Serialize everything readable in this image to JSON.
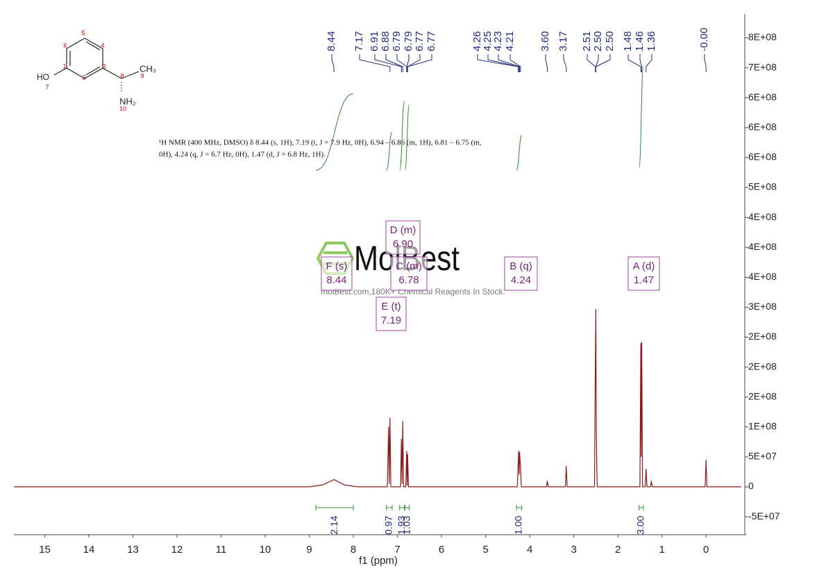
{
  "chart_data": {
    "type": "line",
    "xlabel": "f1 (ppm)",
    "xlim": [
      15.7,
      -0.8
    ],
    "xticks": [
      15,
      14,
      13,
      12,
      11,
      10,
      9,
      8,
      7,
      6,
      5,
      4,
      3,
      2,
      1,
      0
    ],
    "ylim": [
      -80000000,
      790000000
    ],
    "yticks": [
      {
        "value": -50000000,
        "label": "-5E+07"
      },
      0,
      {
        "value": 50000000,
        "label": "5E+07"
      },
      {
        "value": 100000000,
        "label": "1E+08"
      },
      {
        "value": 150000000,
        "label": "2E+08"
      },
      {
        "value": 200000000,
        "label": "2E+08"
      },
      {
        "value": 250000000,
        "label": "2E+08"
      },
      {
        "value": 300000000,
        "label": "3E+08"
      },
      {
        "value": 350000000,
        "label": "4E+08"
      },
      {
        "value": 400000000,
        "label": "4E+08"
      },
      {
        "value": 450000000,
        "label": "4E+08"
      },
      {
        "value": 500000000,
        "label": "5E+08"
      },
      {
        "value": 550000000,
        "label": "6E+08"
      },
      {
        "value": 600000000,
        "label": "6E+08"
      },
      {
        "value": 650000000,
        "label": "6E+08"
      },
      {
        "value": 700000000,
        "label": "7E+08"
      },
      {
        "value": 750000000,
        "label": "8E+08"
      }
    ],
    "color": "#8b1a1a",
    "x": [
      15.7,
      9.0,
      8.7,
      8.44,
      8.2,
      7.9,
      7.23,
      7.2,
      7.185,
      7.17,
      7.15,
      6.93,
      6.91,
      6.895,
      6.88,
      6.86,
      6.81,
      6.79,
      6.78,
      6.77,
      6.75,
      4.28,
      4.26,
      4.25,
      4.24,
      4.23,
      4.21,
      4.19,
      3.62,
      3.6,
      3.58,
      3.19,
      3.17,
      3.15,
      2.53,
      2.51,
      2.5,
      2.49,
      2.47,
      1.5,
      1.48,
      1.47,
      1.46,
      1.44,
      1.38,
      1.36,
      1.34,
      1.26,
      1.24,
      1.22,
      0.02,
      0.0,
      -0.02,
      -0.8
    ],
    "values": [
      0,
      0,
      3000000,
      12000000,
      3000000,
      0,
      0,
      100000000,
      5000000,
      115000000,
      0,
      0,
      80000000,
      5000000,
      110000000,
      0,
      0,
      60000000,
      2000000,
      55000000,
      0,
      0,
      40000000,
      60000000,
      20000000,
      58000000,
      35000000,
      0,
      0,
      10000000,
      0,
      0,
      35000000,
      0,
      0,
      220000000,
      297000000,
      100000000,
      0,
      0,
      240000000,
      50000000,
      242000000,
      0,
      0,
      30000000,
      0,
      0,
      10000000,
      0,
      0,
      45000000,
      0,
      0
    ],
    "peak_labels": [
      "8.44",
      "7.17",
      "6.91",
      "6.88",
      "6.79",
      "6.79",
      "6.77",
      "6.77",
      "4.26",
      "4.25",
      "4.23",
      "4.21",
      "3.60",
      "3.17",
      "2.51",
      "2.50",
      "2.50",
      "1.48",
      "1.46",
      "1.36",
      "-0.00"
    ],
    "integrals": [
      {
        "label": "2.14",
        "range": [
          8.85,
          8.0
        ]
      },
      {
        "label": "0.97",
        "range": [
          7.25,
          7.12
        ]
      },
      {
        "label": "1.93",
        "range": [
          6.95,
          6.84
        ]
      },
      {
        "label": "1.03",
        "range": [
          6.83,
          6.73
        ]
      },
      {
        "label": "1.00",
        "range": [
          4.3,
          4.18
        ]
      },
      {
        "label": "3.00",
        "range": [
          1.52,
          1.42
        ]
      }
    ],
    "annotations": [
      {
        "label": "F (s)",
        "shift": "8.44"
      },
      {
        "label": "D (m)",
        "shift": "6.90"
      },
      {
        "label": "C (m)",
        "shift": "6.78"
      },
      {
        "label": "E (t)",
        "shift": "7.19"
      },
      {
        "label": "B (q)",
        "shift": "4.24"
      },
      {
        "label": "A (d)",
        "shift": "1.47"
      }
    ],
    "description": [
      "¹H NMR (400 MHz, DMSO) δ 8.44 (s, 1H), 7.19 (t, J = 7.9 Hz, 0H), 6.94 – 6.86 (m, 1H), 6.81 – 6.75 (m,",
      "0H), 4.24 (q, J = 6.7 Hz, 0H), 1.47 (d, J = 6.8 Hz, 1H)."
    ],
    "structure_labels": [
      "HO",
      "7",
      "1",
      "2",
      "3",
      "4",
      "5",
      "6",
      "8",
      "9",
      "CH₃",
      "NH₂",
      "10"
    ],
    "watermark": [
      "MolBest",
      "molBest.com,180K+ Chemical Reagents In Stock."
    ]
  }
}
